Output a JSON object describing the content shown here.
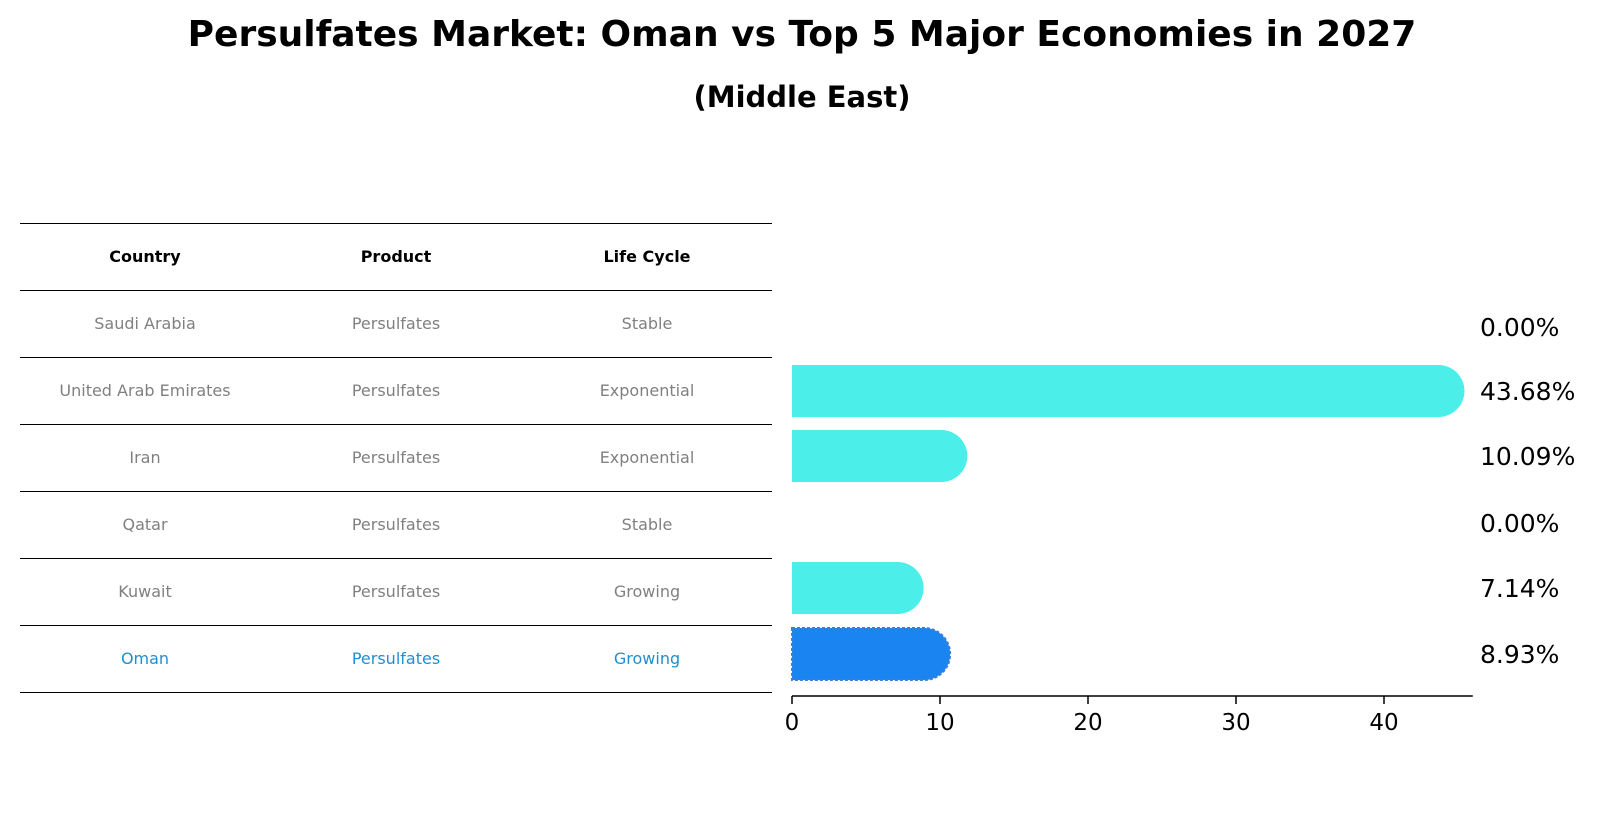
{
  "title": "Persulfates Market: Oman vs Top 5 Major Economies in 2027",
  "subtitle": "(Middle East)",
  "table": {
    "headers": [
      "Country",
      "Product",
      "Life Cycle"
    ],
    "rows": [
      {
        "country": "Saudi Arabia",
        "product": "Persulfates",
        "life_cycle": "Stable"
      },
      {
        "country": "United Arab Emirates",
        "product": "Persulfates",
        "life_cycle": "Exponential"
      },
      {
        "country": "Iran",
        "product": "Persulfates",
        "life_cycle": "Exponential"
      },
      {
        "country": "Qatar",
        "product": "Persulfates",
        "life_cycle": "Stable"
      },
      {
        "country": "Kuwait",
        "product": "Persulfates",
        "life_cycle": "Growing"
      },
      {
        "country": "Oman",
        "product": "Persulfates",
        "life_cycle": "Growing"
      }
    ],
    "highlight_row": "Oman",
    "highlight_color": "#1f8fd0"
  },
  "chart_data": {
    "type": "bar",
    "orientation": "horizontal",
    "categories": [
      "Saudi Arabia",
      "United Arab Emirates",
      "Iran",
      "Qatar",
      "Kuwait",
      "Oman"
    ],
    "values": [
      0.0,
      43.68,
      10.09,
      0.0,
      7.14,
      8.93
    ],
    "value_labels": [
      "0.00%",
      "43.68%",
      "10.09%",
      "0.00%",
      "7.14%",
      "8.93%"
    ],
    "xticks": [
      0,
      10,
      20,
      30,
      40
    ],
    "xlim": [
      0,
      46
    ],
    "bar_color": "#4ceeea",
    "highlight": "Oman",
    "highlight_color": "#1a85f0",
    "grid": false,
    "title": "",
    "xlabel": "",
    "ylabel": ""
  }
}
